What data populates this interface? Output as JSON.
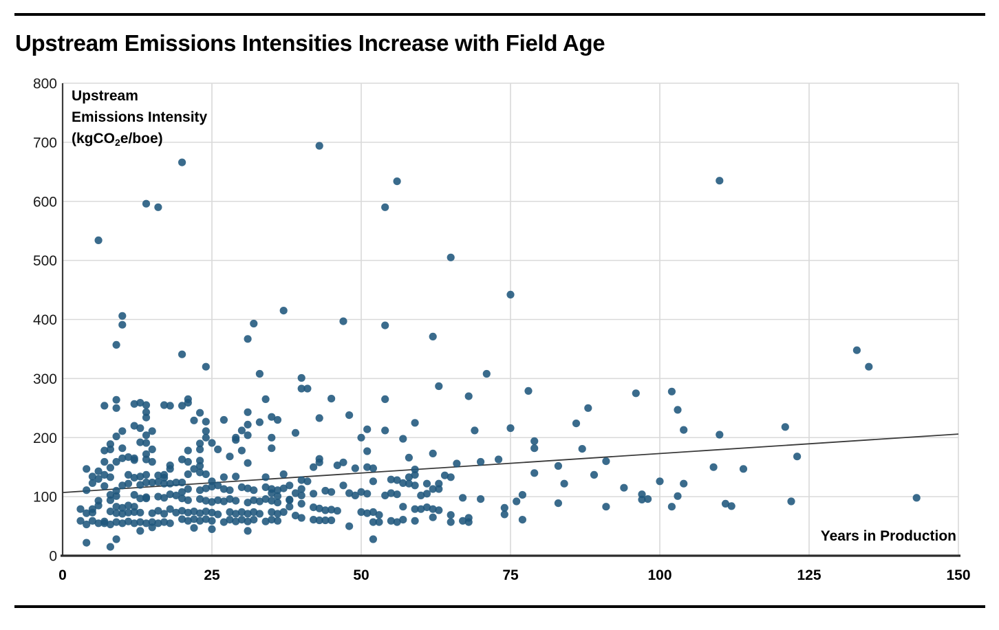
{
  "chart_data": {
    "type": "scatter",
    "title": "Upstream Emissions Intensities Increase with Field Age",
    "ylabel_line1": "Upstream",
    "ylabel_line2": "Emissions Intensity",
    "ylabel_unit_prefix": "(kgCO",
    "ylabel_unit_sub": "2",
    "ylabel_unit_suffix": "e/boe)",
    "xlabel": "Years in Production",
    "xlim": [
      0,
      150
    ],
    "ylim": [
      0,
      800
    ],
    "x_ticks": [
      0,
      25,
      50,
      75,
      100,
      125,
      150
    ],
    "y_ticks": [
      0,
      100,
      200,
      300,
      400,
      500,
      600,
      700,
      800
    ],
    "grid": true,
    "grid_color": "#d9d9d9",
    "spine_color": "#3b3b3b",
    "point_color": "#1f567c",
    "point_opacity": 0.88,
    "point_radius": 5.6,
    "trend_line": {
      "x1": 0,
      "y1": 107,
      "x2": 150,
      "y2": 206,
      "color": "#3a3a3a",
      "width": 1.8
    },
    "points": [
      [
        6,
        534
      ],
      [
        10,
        406
      ],
      [
        10,
        391
      ],
      [
        9,
        357
      ],
      [
        14,
        596
      ],
      [
        16,
        590
      ],
      [
        20,
        666
      ],
      [
        32,
        393
      ],
      [
        31,
        367
      ],
      [
        37,
        415
      ],
      [
        43,
        694
      ],
      [
        47,
        397
      ],
      [
        54,
        390
      ],
      [
        54,
        590
      ],
      [
        56,
        634
      ],
      [
        62,
        371
      ],
      [
        65,
        505
      ],
      [
        71,
        308
      ],
      [
        75,
        442
      ],
      [
        110,
        635
      ],
      [
        133,
        348
      ],
      [
        135,
        320
      ],
      [
        20,
        341
      ],
      [
        24,
        320
      ],
      [
        33,
        308
      ],
      [
        40,
        301
      ],
      [
        63,
        287
      ],
      [
        68,
        270
      ],
      [
        45,
        266
      ],
      [
        54,
        265
      ],
      [
        34,
        265
      ],
      [
        40,
        283
      ],
      [
        41,
        283
      ],
      [
        21,
        265
      ],
      [
        21,
        259
      ],
      [
        20,
        254
      ],
      [
        18,
        254
      ],
      [
        17,
        255
      ],
      [
        14,
        255
      ],
      [
        13,
        259
      ],
      [
        12,
        257
      ],
      [
        7,
        254
      ],
      [
        9,
        264
      ],
      [
        9,
        250
      ],
      [
        14,
        243
      ],
      [
        14,
        234
      ],
      [
        12,
        220
      ],
      [
        13,
        216
      ],
      [
        10,
        211
      ],
      [
        9,
        202
      ],
      [
        15,
        211
      ],
      [
        14,
        204
      ],
      [
        23,
        242
      ],
      [
        22,
        229
      ],
      [
        24,
        227
      ],
      [
        27,
        230
      ],
      [
        31,
        243
      ],
      [
        31,
        222
      ],
      [
        33,
        226
      ],
      [
        35,
        235
      ],
      [
        36,
        230
      ],
      [
        24,
        211
      ],
      [
        30,
        212
      ],
      [
        31,
        204
      ],
      [
        29,
        200
      ],
      [
        35,
        200
      ],
      [
        24,
        200
      ],
      [
        39,
        208
      ],
      [
        43,
        233
      ],
      [
        48,
        238
      ],
      [
        51,
        214
      ],
      [
        54,
        212
      ],
      [
        50,
        200
      ],
      [
        57,
        198
      ],
      [
        59,
        225
      ],
      [
        69,
        212
      ],
      [
        75,
        216
      ],
      [
        78,
        279
      ],
      [
        96,
        275
      ],
      [
        102,
        278
      ],
      [
        88,
        250
      ],
      [
        103,
        247
      ],
      [
        86,
        224
      ],
      [
        104,
        213
      ],
      [
        110,
        205
      ],
      [
        121,
        218
      ],
      [
        8,
        189
      ],
      [
        10,
        182
      ],
      [
        13,
        192
      ],
      [
        14,
        191
      ],
      [
        15,
        180
      ],
      [
        7,
        178
      ],
      [
        8,
        180
      ],
      [
        23,
        190
      ],
      [
        23,
        180
      ],
      [
        25,
        191
      ],
      [
        26,
        180
      ],
      [
        29,
        196
      ],
      [
        30,
        178
      ],
      [
        21,
        178
      ],
      [
        35,
        182
      ],
      [
        28,
        168
      ],
      [
        31,
        157
      ],
      [
        4,
        147
      ],
      [
        6,
        143
      ],
      [
        7,
        159
      ],
      [
        8,
        149
      ],
      [
        9,
        159
      ],
      [
        10,
        165
      ],
      [
        11,
        167
      ],
      [
        12,
        162
      ],
      [
        12,
        165
      ],
      [
        14,
        172
      ],
      [
        14,
        163
      ],
      [
        15,
        159
      ],
      [
        18,
        153
      ],
      [
        18,
        147
      ],
      [
        20,
        163
      ],
      [
        21,
        159
      ],
      [
        23,
        161
      ],
      [
        23,
        152
      ],
      [
        22,
        147
      ],
      [
        23,
        141
      ],
      [
        24,
        138
      ],
      [
        21,
        138
      ],
      [
        51,
        177
      ],
      [
        62,
        173
      ],
      [
        58,
        166
      ],
      [
        66,
        156
      ],
      [
        70,
        159
      ],
      [
        73,
        163
      ],
      [
        43,
        164
      ],
      [
        43,
        158
      ],
      [
        42,
        150
      ],
      [
        46,
        153
      ],
      [
        47,
        158
      ],
      [
        49,
        148
      ],
      [
        51,
        150
      ],
      [
        52,
        148
      ],
      [
        59,
        146
      ],
      [
        79,
        194
      ],
      [
        79,
        182
      ],
      [
        87,
        181
      ],
      [
        91,
        160
      ],
      [
        83,
        152
      ],
      [
        89,
        137
      ],
      [
        79,
        140
      ],
      [
        109,
        150
      ],
      [
        114,
        147
      ],
      [
        123,
        168
      ],
      [
        59,
        137
      ],
      [
        64,
        136
      ],
      [
        65,
        133
      ],
      [
        58,
        133
      ],
      [
        5,
        134
      ],
      [
        6,
        130
      ],
      [
        7,
        137
      ],
      [
        8,
        133
      ],
      [
        11,
        137
      ],
      [
        12,
        132
      ],
      [
        13,
        134
      ],
      [
        14,
        137
      ],
      [
        16,
        136
      ],
      [
        17,
        132
      ],
      [
        17,
        137
      ],
      [
        27,
        133
      ],
      [
        29,
        134
      ],
      [
        34,
        133
      ],
      [
        37,
        138
      ],
      [
        4,
        111
      ],
      [
        5,
        123
      ],
      [
        7,
        118
      ],
      [
        9,
        110
      ],
      [
        10,
        119
      ],
      [
        11,
        122
      ],
      [
        13,
        120
      ],
      [
        14,
        124
      ],
      [
        15,
        124
      ],
      [
        16,
        125
      ],
      [
        17,
        122
      ],
      [
        18,
        122
      ],
      [
        19,
        124
      ],
      [
        25,
        126
      ],
      [
        20,
        124
      ],
      [
        21,
        113
      ],
      [
        20,
        108
      ],
      [
        23,
        111
      ],
      [
        24,
        114
      ],
      [
        25,
        117
      ],
      [
        26,
        119
      ],
      [
        27,
        113
      ],
      [
        28,
        111
      ],
      [
        30,
        116
      ],
      [
        31,
        114
      ],
      [
        32,
        111
      ],
      [
        34,
        116
      ],
      [
        35,
        113
      ],
      [
        36,
        111
      ],
      [
        37,
        114
      ],
      [
        35,
        106
      ],
      [
        36,
        101
      ],
      [
        40,
        128
      ],
      [
        41,
        126
      ],
      [
        38,
        119
      ],
      [
        40,
        113
      ],
      [
        47,
        119
      ],
      [
        52,
        126
      ],
      [
        55,
        129
      ],
      [
        56,
        128
      ],
      [
        57,
        123
      ],
      [
        58,
        122
      ],
      [
        59,
        119
      ],
      [
        61,
        122
      ],
      [
        62,
        113
      ],
      [
        63,
        113
      ],
      [
        63,
        122
      ],
      [
        84,
        122
      ],
      [
        100,
        126
      ],
      [
        104,
        122
      ],
      [
        94,
        115
      ],
      [
        6,
        93
      ],
      [
        6,
        85
      ],
      [
        8,
        103
      ],
      [
        9,
        101
      ],
      [
        8,
        94
      ],
      [
        12,
        103
      ],
      [
        13,
        97
      ],
      [
        14,
        99
      ],
      [
        14,
        97
      ],
      [
        16,
        100
      ],
      [
        17,
        98
      ],
      [
        18,
        104
      ],
      [
        19,
        102
      ],
      [
        20,
        97
      ],
      [
        21,
        94
      ],
      [
        23,
        96
      ],
      [
        24,
        93
      ],
      [
        25,
        91
      ],
      [
        26,
        94
      ],
      [
        27,
        92
      ],
      [
        28,
        96
      ],
      [
        29,
        93
      ],
      [
        31,
        90
      ],
      [
        32,
        94
      ],
      [
        33,
        92
      ],
      [
        34,
        96
      ],
      [
        35,
        93
      ],
      [
        36,
        90
      ],
      [
        38,
        94
      ],
      [
        39,
        106
      ],
      [
        40,
        102
      ],
      [
        38,
        95
      ],
      [
        42,
        105
      ],
      [
        44,
        110
      ],
      [
        45,
        108
      ],
      [
        48,
        106
      ],
      [
        49,
        102
      ],
      [
        50,
        108
      ],
      [
        51,
        105
      ],
      [
        54,
        102
      ],
      [
        55,
        106
      ],
      [
        56,
        104
      ],
      [
        60,
        102
      ],
      [
        61,
        105
      ],
      [
        67,
        98
      ],
      [
        70,
        96
      ],
      [
        97,
        104
      ],
      [
        97,
        95
      ],
      [
        98,
        96
      ],
      [
        77,
        103
      ],
      [
        103,
        101
      ],
      [
        122,
        92
      ],
      [
        143,
        98
      ],
      [
        111,
        88
      ],
      [
        112,
        84
      ],
      [
        76,
        92
      ],
      [
        3,
        79
      ],
      [
        4,
        72
      ],
      [
        5,
        73
      ],
      [
        5,
        79
      ],
      [
        9,
        83
      ],
      [
        10,
        81
      ],
      [
        11,
        85
      ],
      [
        12,
        83
      ],
      [
        8,
        75
      ],
      [
        9,
        72
      ],
      [
        10,
        71
      ],
      [
        11,
        73
      ],
      [
        12,
        74
      ],
      [
        13,
        73
      ],
      [
        15,
        72
      ],
      [
        16,
        76
      ],
      [
        17,
        71
      ],
      [
        18,
        79
      ],
      [
        19,
        73
      ],
      [
        20,
        76
      ],
      [
        21,
        73
      ],
      [
        22,
        75
      ],
      [
        23,
        72
      ],
      [
        24,
        75
      ],
      [
        25,
        73
      ],
      [
        26,
        70
      ],
      [
        28,
        74
      ],
      [
        29,
        71
      ],
      [
        30,
        74
      ],
      [
        31,
        71
      ],
      [
        32,
        74
      ],
      [
        33,
        71
      ],
      [
        35,
        74
      ],
      [
        36,
        71
      ],
      [
        37,
        74
      ],
      [
        40,
        88
      ],
      [
        38,
        83
      ],
      [
        42,
        82
      ],
      [
        43,
        80
      ],
      [
        44,
        77
      ],
      [
        45,
        78
      ],
      [
        46,
        76
      ],
      [
        50,
        74
      ],
      [
        51,
        72
      ],
      [
        52,
        74
      ],
      [
        53,
        69
      ],
      [
        57,
        83
      ],
      [
        59,
        79
      ],
      [
        60,
        79
      ],
      [
        61,
        82
      ],
      [
        62,
        79
      ],
      [
        63,
        77
      ],
      [
        62,
        65
      ],
      [
        65,
        69
      ],
      [
        68,
        64
      ],
      [
        74,
        81
      ],
      [
        74,
        70
      ],
      [
        83,
        89
      ],
      [
        91,
        83
      ],
      [
        102,
        83
      ],
      [
        77,
        61
      ],
      [
        3,
        59
      ],
      [
        4,
        53
      ],
      [
        5,
        59
      ],
      [
        6,
        55
      ],
      [
        7,
        58
      ],
      [
        7,
        55
      ],
      [
        8,
        53
      ],
      [
        9,
        57
      ],
      [
        10,
        55
      ],
      [
        11,
        58
      ],
      [
        12,
        55
      ],
      [
        13,
        57
      ],
      [
        14,
        55
      ],
      [
        15,
        57
      ],
      [
        16,
        55
      ],
      [
        17,
        57
      ],
      [
        18,
        55
      ],
      [
        20,
        62
      ],
      [
        21,
        59
      ],
      [
        22,
        62
      ],
      [
        23,
        59
      ],
      [
        24,
        62
      ],
      [
        25,
        59
      ],
      [
        27,
        57
      ],
      [
        28,
        61
      ],
      [
        29,
        58
      ],
      [
        30,
        61
      ],
      [
        31,
        58
      ],
      [
        32,
        61
      ],
      [
        34,
        58
      ],
      [
        35,
        61
      ],
      [
        36,
        59
      ],
      [
        39,
        68
      ],
      [
        40,
        64
      ],
      [
        42,
        61
      ],
      [
        43,
        60
      ],
      [
        44,
        60
      ],
      [
        45,
        60
      ],
      [
        52,
        57
      ],
      [
        53,
        57
      ],
      [
        55,
        59
      ],
      [
        56,
        57
      ],
      [
        57,
        61
      ],
      [
        59,
        59
      ],
      [
        65,
        57
      ],
      [
        67,
        59
      ],
      [
        68,
        57
      ],
      [
        4,
        22
      ],
      [
        9,
        28
      ],
      [
        8,
        15
      ],
      [
        13,
        42
      ],
      [
        15,
        48
      ],
      [
        22,
        47
      ],
      [
        25,
        45
      ],
      [
        31,
        42
      ],
      [
        48,
        50
      ],
      [
        52,
        28
      ]
    ]
  },
  "layout_colors": {
    "page_rule": "#000000",
    "background": "#ffffff"
  }
}
